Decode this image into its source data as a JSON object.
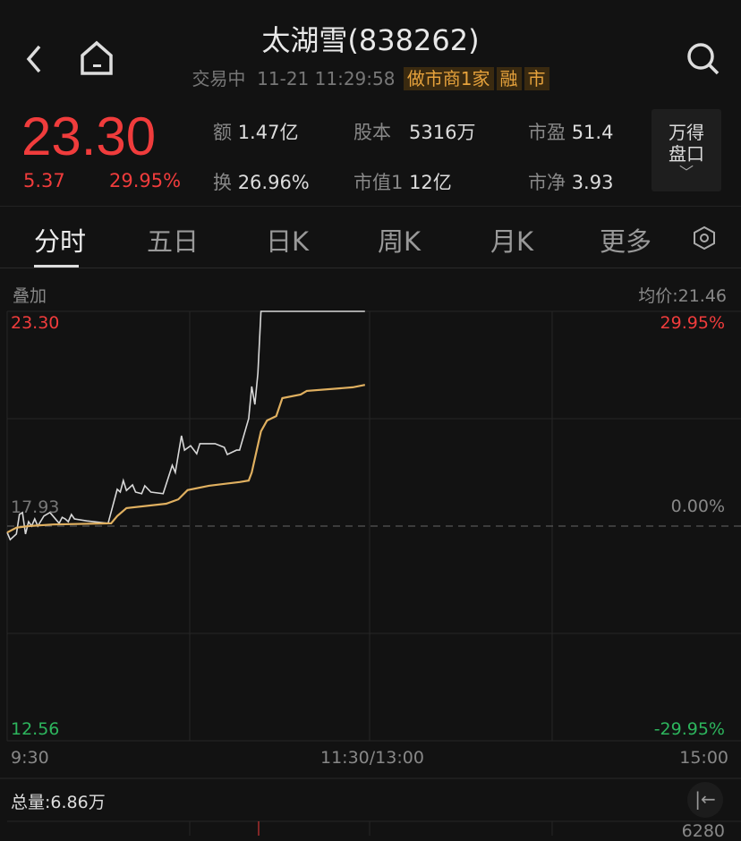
{
  "header": {
    "title": "太湖雪(838262)",
    "status": "交易中",
    "datetime": "11-21 11:29:58",
    "badges": [
      "做市商1家",
      "融",
      "市"
    ],
    "icons": [
      "back-icon",
      "home-icon",
      "search-icon"
    ]
  },
  "quote": {
    "price": "23.30",
    "change": "5.37",
    "change_pct": "29.95%",
    "stats": [
      {
        "label": "额",
        "value": "1.47亿"
      },
      {
        "label": "股本",
        "value": "5316万"
      },
      {
        "label": "市盈",
        "value": "51.4"
      },
      {
        "label": "换",
        "value": "26.96%"
      },
      {
        "label": "市值1",
        "value": "12亿"
      },
      {
        "label": "市净",
        "value": "3.93"
      }
    ],
    "wind_button": {
      "line1": "万得",
      "line2": "盘口"
    }
  },
  "tabs": [
    "分时",
    "五日",
    "日K",
    "周K",
    "月K",
    "更多"
  ],
  "active_tab": "分时",
  "chart": {
    "overlay_label": "叠加",
    "avg_price": "均价:21.46",
    "price_high": "23.30",
    "price_mid": "17.93",
    "price_low": "12.56",
    "pct_high": "29.95%",
    "pct_mid": "0.00%",
    "pct_low": "-29.95%",
    "time_labels": [
      "9:30",
      "11:30/13:00",
      "15:00"
    ]
  },
  "colors": {
    "up": "#f03c3c",
    "down": "#2db55d",
    "price_line": "#d8d8d8",
    "avg_line": "#e0b060",
    "background": "#121212"
  },
  "chart_data": {
    "type": "line",
    "ylim": [
      12.56,
      23.3
    ],
    "prev_close": 17.93,
    "xlim": [
      "9:30",
      "15:00"
    ],
    "grid": true,
    "series": [
      {
        "key": "price",
        "points": [
          [
            "9:30",
            17.77
          ],
          [
            "9:31",
            17.59
          ],
          [
            "9:33",
            17.73
          ],
          [
            "9:34",
            18.22
          ],
          [
            "9:35",
            18.27
          ],
          [
            "9:36",
            17.73
          ],
          [
            "9:37",
            18.04
          ],
          [
            "9:38",
            17.93
          ],
          [
            "9:39",
            18.11
          ],
          [
            "9:40",
            17.93
          ],
          [
            "9:42",
            18.18
          ],
          [
            "9:44",
            18.27
          ],
          [
            "9:47",
            18.0
          ],
          [
            "9:48",
            18.15
          ],
          [
            "9:49",
            18.11
          ],
          [
            "9:50",
            18.04
          ],
          [
            "9:51",
            18.22
          ],
          [
            "9:52",
            18.11
          ],
          [
            "9:56",
            18.06
          ],
          [
            "10:03",
            18.0
          ],
          [
            "10:06",
            18.85
          ],
          [
            "10:07",
            18.78
          ],
          [
            "10:08",
            19.07
          ],
          [
            "10:09",
            18.82
          ],
          [
            "10:11",
            18.96
          ],
          [
            "10:12",
            18.78
          ],
          [
            "10:14",
            18.74
          ],
          [
            "10:15",
            18.94
          ],
          [
            "10:17",
            18.78
          ],
          [
            "10:21",
            18.74
          ],
          [
            "10:24",
            19.45
          ],
          [
            "10:25",
            19.27
          ],
          [
            "10:27",
            20.19
          ],
          [
            "10:28",
            19.83
          ],
          [
            "10:30",
            19.94
          ],
          [
            "10:32",
            19.74
          ],
          [
            "10:33",
            19.99
          ],
          [
            "10:38",
            19.99
          ],
          [
            "10:41",
            19.9
          ],
          [
            "10:42",
            19.72
          ],
          [
            "10:45",
            19.83
          ],
          [
            "10:46",
            19.83
          ],
          [
            "10:49",
            20.62
          ],
          [
            "10:50",
            21.42
          ],
          [
            "10:51",
            20.97
          ],
          [
            "10:52",
            21.76
          ],
          [
            "10:53",
            23.3
          ],
          [
            "11:27",
            23.3
          ]
        ]
      },
      {
        "key": "avg",
        "points": [
          [
            "9:30",
            17.77
          ],
          [
            "9:33",
            17.89
          ],
          [
            "9:37",
            17.93
          ],
          [
            "9:45",
            17.97
          ],
          [
            "10:04",
            18.0
          ],
          [
            "10:06",
            18.18
          ],
          [
            "10:09",
            18.38
          ],
          [
            "10:22",
            18.49
          ],
          [
            "10:26",
            18.6
          ],
          [
            "10:29",
            18.83
          ],
          [
            "10:36",
            18.94
          ],
          [
            "10:46",
            19.03
          ],
          [
            "10:49",
            19.07
          ],
          [
            "10:50",
            19.27
          ],
          [
            "10:53",
            20.3
          ],
          [
            "10:55",
            20.57
          ],
          [
            "10:58",
            20.68
          ],
          [
            "11:00",
            21.13
          ],
          [
            "11:06",
            21.22
          ],
          [
            "11:08",
            21.31
          ],
          [
            "11:23",
            21.4
          ],
          [
            "11:27",
            21.46
          ]
        ]
      }
    ]
  },
  "volume": {
    "total": "总量:6.86万",
    "axis_max": "6280"
  }
}
